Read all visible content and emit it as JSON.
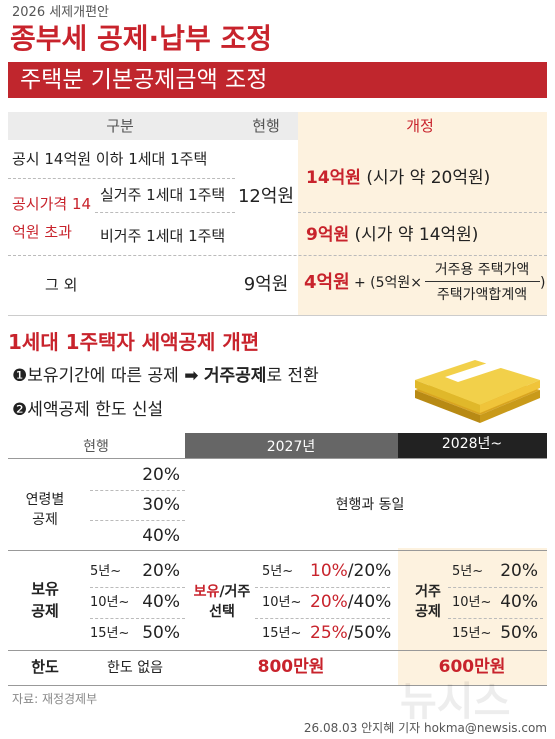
{
  "header": {
    "kicker": "2026 세제개편안",
    "title": "종부세 공제·납부 조정"
  },
  "deduction_table": {
    "title": "주택분 기본공제금액 조정",
    "columns": [
      "구분",
      "현행",
      "개정"
    ],
    "single_home_low": "공시 14억원 이하 1세대 1주택",
    "over_14_group": "공시가격 14억원 초과",
    "resident": "실거주 1세대 1주택",
    "non_resident": "비거주 1세대 1주택",
    "current_main": "12억원",
    "revised_main": {
      "amount": "14억원",
      "note": "(시가 약 20억원)"
    },
    "revised_non_resident": {
      "amount": "9억원",
      "note": "(시가 약 14억원)"
    },
    "other": {
      "label": "그 외",
      "current": "9억원",
      "amount": "4억원",
      "formula_prefix": "+ (5억원×",
      "numerator": "거주용 주택가액",
      "denominator": "주택가액합계액",
      "formula_suffix": ")"
    }
  },
  "tax_credit": {
    "title": "1세대 1주택자 세액공제 개편",
    "points": [
      {
        "number": "❶",
        "parts": [
          "보유기간에 따른 공제",
          "➡",
          "거주공제",
          "로 전환"
        ]
      },
      {
        "number": "❷",
        "text": "세액공제 한도 신설"
      }
    ],
    "table": {
      "columns": [
        "현행",
        "2027년",
        "2028년~"
      ],
      "age": {
        "label": "연령별 공제",
        "current": [
          "20%",
          "30%",
          "40%"
        ],
        "y2027": "현행과 동일"
      },
      "holding": {
        "label": "보유 공제",
        "periods": [
          "5년~",
          "10년~",
          "15년~"
        ],
        "current": [
          "20%",
          "40%",
          "50%"
        ],
        "y2027_label": [
          "보유",
          "/거주 선택"
        ],
        "y2027": [
          [
            "10%",
            "/20%"
          ],
          [
            "20%",
            "/40%"
          ],
          [
            "25%",
            "/50%"
          ]
        ],
        "y2028_label": "거주 공제",
        "y2028": [
          "20%",
          "40%",
          "50%"
        ]
      },
      "limit": {
        "label": "한도",
        "current": "한도 없음",
        "y2027": "800만원",
        "y2028": "600만원"
      }
    }
  },
  "footer": {
    "source": "자료: 재정경제부",
    "credit": "26.08.03 안지혜 기자 hokma@newsis.com",
    "watermark": "뉴시스"
  }
}
